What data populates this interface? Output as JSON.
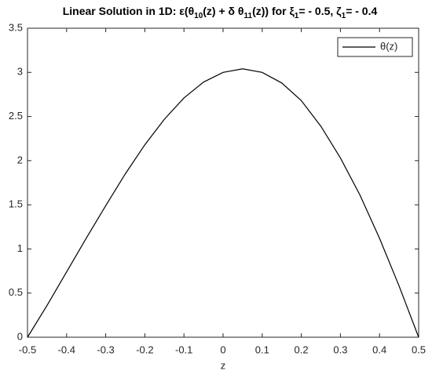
{
  "chart_data": {
    "type": "line",
    "title": [
      "Linear Solution in 1D:  ε(θ",
      "10",
      "(z) + δ θ",
      "11",
      "(z)) for ξ",
      "1",
      "= - 0.5, ζ",
      "1",
      "= - 0.4"
    ],
    "xlabel": "z",
    "x": [
      -0.5,
      -0.45,
      -0.4,
      -0.35,
      -0.3,
      -0.25,
      -0.2,
      -0.15,
      -0.1,
      -0.05,
      0,
      0.05,
      0.1,
      0.15,
      0.2,
      0.25,
      0.3,
      0.35,
      0.4,
      0.45,
      0.5
    ],
    "series": [
      {
        "name": "θ(z)",
        "color": "#000000",
        "values": [
          0,
          0.36,
          0.74,
          1.12,
          1.49,
          1.85,
          2.18,
          2.47,
          2.71,
          2.89,
          3.0,
          3.04,
          3.0,
          2.88,
          2.68,
          2.39,
          2.03,
          1.61,
          1.12,
          0.58,
          0
        ]
      }
    ],
    "xlim": [
      -0.5,
      0.5
    ],
    "xticks": [
      -0.5,
      -0.4,
      -0.3,
      -0.2,
      -0.1,
      0,
      0.1,
      0.2,
      0.3,
      0.4,
      0.5
    ],
    "ylim": [
      0,
      3.5
    ],
    "yticks": [
      0,
      0.5,
      1,
      1.5,
      2,
      2.5,
      3,
      3.5
    ],
    "grid": false,
    "legend": "northeast"
  }
}
